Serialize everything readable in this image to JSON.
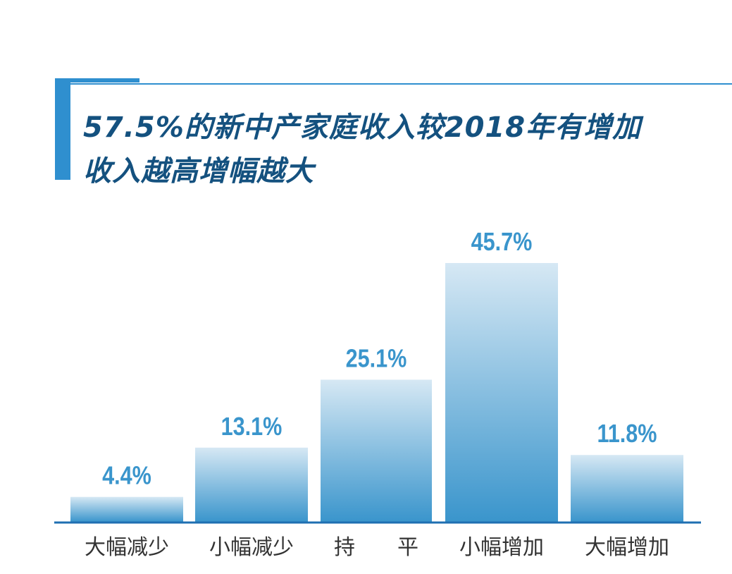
{
  "title": {
    "line1": "57.5%的新中产家庭收入较2018年有增加",
    "line2": "收入越高增幅越大"
  },
  "colors": {
    "accent": "#2f8fcf",
    "title_text": "#14517f",
    "bar_top": "#d6e8f4",
    "bar_bottom": "#3a95cc",
    "value_label": "#3a95cc",
    "category_label": "#333333",
    "baseline": "#1f6fb2"
  },
  "chart_data": {
    "type": "bar",
    "categories": [
      "大幅减少",
      "小幅减少",
      "持　　平",
      "小幅增加",
      "大幅增加"
    ],
    "values": [
      4.4,
      13.1,
      25.1,
      45.7,
      11.8
    ],
    "value_labels": [
      "4.4%",
      "13.1%",
      "25.1%",
      "45.7%",
      "11.8%"
    ],
    "unit": "%",
    "ylim": [
      0,
      50
    ],
    "grid": false,
    "legend": "none"
  }
}
